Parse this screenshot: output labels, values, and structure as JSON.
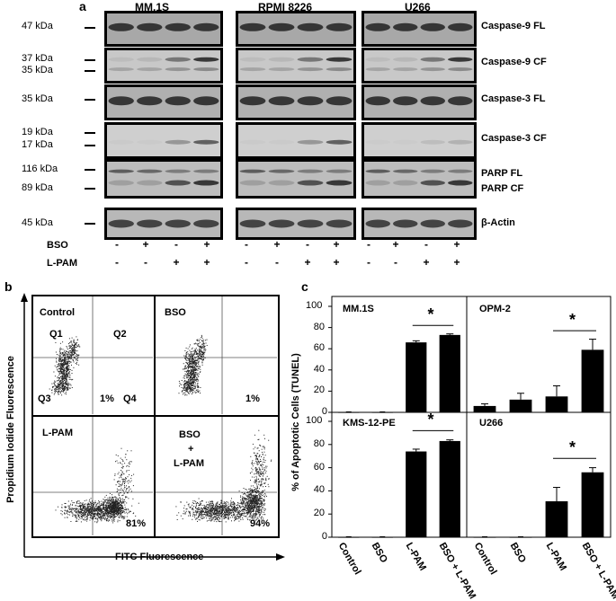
{
  "panel_a": {
    "letter": "a",
    "cell_lines": [
      "MM.1S",
      "RPMI 8226",
      "U266"
    ],
    "mw_labels": [
      "47 kDa",
      "37 kDa",
      "35 kDa",
      "35 kDa",
      "19 kDa",
      "17 kDa",
      "116 kDa",
      "89 kDa",
      "45 kDa"
    ],
    "rows": [
      {
        "labels": [
          "Caspase-9 FL"
        ]
      },
      {
        "labels": [
          "Caspase-9 CF"
        ]
      },
      {
        "labels": [
          "Caspase-3 FL"
        ]
      },
      {
        "labels": [
          "Caspase-3 CF"
        ]
      },
      {
        "labels": [
          "PARP FL",
          "PARP CF"
        ]
      },
      {
        "labels": [
          "β-Actin"
        ]
      }
    ],
    "treatments": [
      {
        "name": "BSO",
        "signs": [
          "-",
          "+",
          "-",
          "+"
        ]
      },
      {
        "name": "L-PAM",
        "signs": [
          "-",
          "-",
          "+",
          "+"
        ]
      }
    ]
  },
  "panel_b": {
    "letter": "b",
    "y_label": "Propidium Iodide Fluorescence",
    "x_label": "FITC Fluorescence",
    "plots": [
      {
        "title": "Control",
        "quadrants": [
          "Q1",
          "Q2",
          "Q3",
          "Q4"
        ],
        "percent": "1%"
      },
      {
        "title": "BSO",
        "percent": "1%"
      },
      {
        "title": "L-PAM",
        "percent": "81%"
      },
      {
        "title_lines": [
          "BSO",
          "+",
          "L-PAM"
        ],
        "percent": "94%"
      }
    ]
  },
  "chart_data": [
    {
      "type": "bar",
      "title": "MM.1S",
      "categories": [
        "Control",
        "BSO",
        "L-PAM",
        "BSO + L-PAM"
      ],
      "values": [
        0,
        0,
        66,
        73
      ],
      "errors": [
        0,
        0,
        1.5,
        1
      ],
      "ylim": [
        0,
        100
      ],
      "significance": "*",
      "ylabel": "% of Apoptotic Cells (TUNEL)"
    },
    {
      "type": "bar",
      "title": "OPM-2",
      "categories": [
        "Control",
        "BSO",
        "L-PAM",
        "BSO + L-PAM"
      ],
      "values": [
        6,
        12,
        15,
        59
      ],
      "errors": [
        2,
        6,
        10,
        10
      ],
      "ylim": [
        0,
        100
      ],
      "significance": "*"
    },
    {
      "type": "bar",
      "title": "KMS-12-PE",
      "categories": [
        "Control",
        "BSO",
        "L-PAM",
        "BSO + L-PAM"
      ],
      "values": [
        0,
        0,
        74,
        83
      ],
      "errors": [
        0,
        0,
        2,
        1
      ],
      "ylim": [
        0,
        100
      ],
      "significance": "*"
    },
    {
      "type": "bar",
      "title": "U266",
      "categories": [
        "Control",
        "BSO",
        "L-PAM",
        "BSO + L-PAM"
      ],
      "values": [
        0,
        0,
        31,
        56
      ],
      "errors": [
        0,
        0,
        12,
        4
      ],
      "ylim": [
        0,
        100
      ],
      "significance": "*"
    }
  ],
  "panel_c": {
    "letter": "c",
    "y_ticks": [
      "0",
      "20",
      "40",
      "60",
      "80",
      "100"
    ],
    "x_labels": [
      "Control",
      "BSO",
      "L-PAM",
      "BSO + L-PAM"
    ]
  }
}
